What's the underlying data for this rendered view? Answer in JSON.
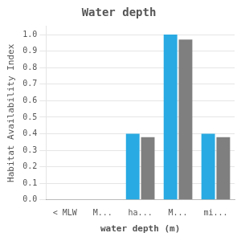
{
  "chart_data": {
    "type": "bar",
    "title": "Water depth",
    "xlabel": "water depth (m)",
    "ylabel": "Habitat Availability Index",
    "categories": [
      "< MLW",
      "M...",
      "ha...",
      "M...",
      "mi..."
    ],
    "series": [
      {
        "color": "#29aae2",
        "values": [
          0.0,
          0.0,
          0.4,
          1.0,
          0.4
        ]
      },
      {
        "color": "#7f7f7f",
        "values": [
          0.0,
          0.0,
          0.38,
          0.97,
          0.38
        ]
      }
    ],
    "ylim": [
      0.0,
      1.05
    ],
    "yticks": [
      {
        "value": 0,
        "label": "0.0"
      },
      0.1,
      0.2,
      0.3,
      0.4,
      0.5,
      0.6,
      0.7,
      0.8,
      0.9,
      {
        "value": 1,
        "label": "1.0"
      }
    ],
    "grid": true
  }
}
